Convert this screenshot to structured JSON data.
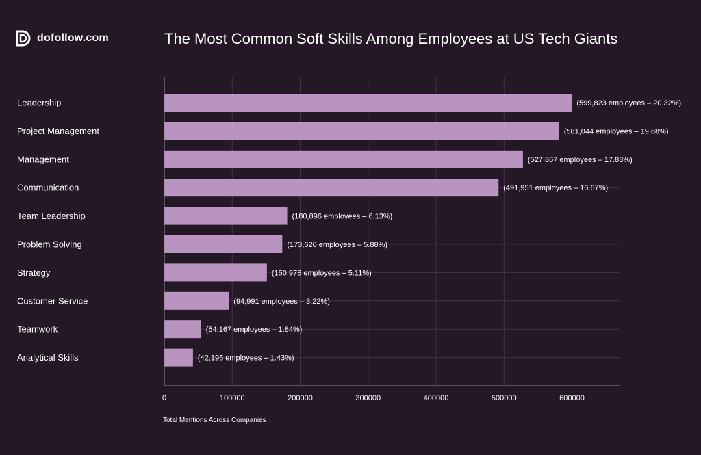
{
  "brand": {
    "logo_text": "dofollow.com",
    "icon": "dofollow-logo-icon"
  },
  "colors": {
    "background": "#241726",
    "bar": "#c29bc8",
    "grid": "#4a2d4c",
    "text": "#ffffff"
  },
  "chart_data": {
    "type": "bar",
    "orientation": "horizontal",
    "title": "The Most Common Soft Skills Among Employees at US Tech Giants",
    "xlabel": "Total Mentions Across Companies",
    "ylabel": "",
    "xlim": [
      0,
      670000
    ],
    "xticks": [
      0,
      100000,
      200000,
      300000,
      400000,
      500000,
      600000
    ],
    "xtick_labels": [
      "0",
      "100000",
      "200000",
      "300000",
      "400000",
      "500000",
      "600000"
    ],
    "categories": [
      "Leadership",
      "Project Management",
      "Management",
      "Communication",
      "Team Leadership",
      "Problem Solving",
      "Strategy",
      "Customer Service",
      "Teamwork",
      "Analytical Skills"
    ],
    "values": [
      599823,
      581044,
      527867,
      491951,
      180896,
      173620,
      150978,
      94991,
      54167,
      42195
    ],
    "data_labels": [
      "(599,823 employees – 20.32%)",
      "(581,044 employees – 19.68%)",
      "(527,867 employees – 17.88%)",
      "(491,951 employees – 16.67%)",
      "(180,896 employees – 6.13%)",
      "(173,620 employees – 5.88%)",
      "(150,978 employees – 5.11%)",
      "(94,991 employees – 3.22%)",
      "(54,167 employees – 1.84%)",
      "(42,195 employees – 1.43%)"
    ],
    "grid": true
  }
}
